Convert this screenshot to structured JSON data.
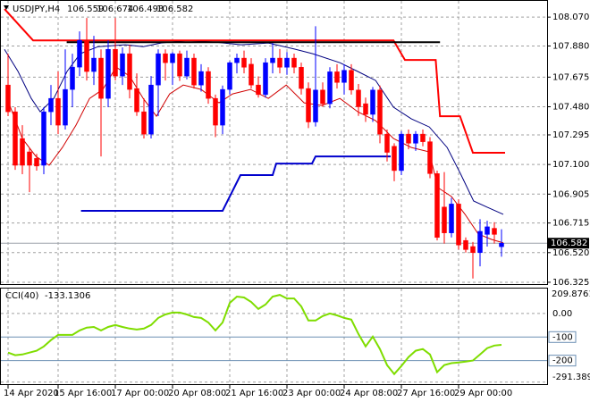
{
  "chart_data": [
    {
      "type": "candlestick",
      "symbol": "USDJPY,H4",
      "up_color": "#0000ff",
      "down_color": "#ff0000",
      "grid": true,
      "open": [
        107.623,
        107.447,
        107.271,
        107.183,
        107.14,
        107.095,
        107.447,
        107.535,
        107.359,
        107.594,
        107.741,
        107.917,
        107.712,
        107.8,
        107.535,
        107.858,
        107.682,
        107.829,
        107.6,
        107.447,
        107.3,
        107.623,
        107.829,
        107.77,
        107.829,
        107.682,
        107.8,
        107.623,
        107.712,
        107.535,
        107.359,
        107.594,
        107.77,
        107.8,
        107.76,
        107.623,
        107.56,
        107.77,
        107.8,
        107.74,
        107.8,
        107.74,
        107.6,
        107.38,
        107.59,
        107.5,
        107.71,
        107.64,
        107.72,
        107.59,
        107.5,
        107.43,
        107.59,
        107.3,
        107.22,
        107.06,
        107.3,
        107.24,
        107.3,
        107.25,
        107.04,
        106.82,
        106.65,
        106.84,
        106.6,
        106.56,
        106.52,
        106.64,
        106.68,
        106.559
      ],
      "high": [
        107.829,
        107.477,
        107.359,
        107.212,
        107.17,
        107.477,
        107.623,
        107.712,
        107.858,
        107.829,
        107.976,
        108.064,
        107.947,
        107.858,
        107.917,
        108.064,
        107.87,
        107.888,
        107.7,
        107.535,
        107.682,
        107.858,
        107.858,
        107.84,
        107.85,
        107.85,
        107.83,
        107.76,
        107.74,
        107.56,
        107.62,
        107.78,
        107.83,
        107.85,
        107.8,
        107.68,
        107.8,
        107.9,
        107.86,
        107.84,
        107.83,
        107.77,
        107.64,
        108.01,
        107.64,
        107.74,
        107.76,
        107.76,
        107.76,
        107.63,
        107.54,
        107.61,
        107.62,
        107.33,
        107.24,
        107.32,
        107.33,
        107.32,
        107.33,
        107.28,
        107.06,
        107.05,
        106.88,
        106.87,
        106.62,
        106.59,
        106.74,
        106.73,
        106.72,
        106.674
      ],
      "low": [
        107.418,
        107.065,
        107.036,
        106.918,
        107.06,
        107.036,
        107.359,
        107.3,
        107.33,
        107.477,
        107.682,
        107.653,
        107.623,
        107.153,
        107.477,
        107.653,
        107.623,
        107.535,
        107.42,
        107.271,
        107.271,
        107.418,
        107.653,
        107.623,
        107.65,
        107.66,
        107.6,
        107.58,
        107.5,
        107.28,
        107.3,
        107.56,
        107.7,
        107.7,
        107.6,
        107.54,
        107.54,
        107.7,
        107.7,
        107.69,
        107.7,
        107.56,
        107.34,
        107.35,
        107.48,
        107.47,
        107.6,
        107.56,
        107.56,
        107.42,
        107.38,
        107.38,
        107.24,
        107.12,
        106.99,
        107.03,
        107.2,
        107.19,
        107.22,
        107.01,
        106.6,
        106.58,
        106.62,
        106.54,
        106.52,
        106.35,
        106.43,
        106.56,
        106.58,
        106.493
      ],
      "close": [
        107.447,
        107.095,
        107.095,
        107.095,
        107.09,
        107.447,
        107.535,
        107.359,
        107.594,
        107.741,
        107.917,
        107.712,
        107.8,
        107.535,
        107.858,
        107.682,
        107.829,
        107.594,
        107.447,
        107.3,
        107.623,
        107.829,
        107.77,
        107.829,
        107.682,
        107.8,
        107.623,
        107.712,
        107.535,
        107.359,
        107.594,
        107.77,
        107.8,
        107.74,
        107.623,
        107.56,
        107.77,
        107.8,
        107.74,
        107.8,
        107.74,
        107.6,
        107.38,
        107.59,
        107.5,
        107.71,
        107.64,
        107.72,
        107.59,
        107.48,
        107.43,
        107.59,
        107.3,
        107.18,
        107.06,
        107.3,
        107.24,
        107.3,
        107.25,
        107.04,
        106.62,
        106.65,
        106.84,
        106.57,
        106.54,
        106.52,
        106.66,
        106.69,
        106.64,
        106.582
      ],
      "ylim": [
        106.313,
        108.165
      ],
      "yticks": [
        {
          "value": 108.07,
          "label": "108.070"
        },
        {
          "value": 107.88,
          "label": "107.880"
        },
        107.675,
        {
          "value": 107.48,
          "label": "107.480"
        },
        107.295,
        {
          "value": 107.1,
          "label": "107.100"
        },
        106.905,
        106.715,
        {
          "value": 106.52,
          "label": "106.520"
        },
        106.325
      ],
      "xticks": [
        {
          "value": 0,
          "label": "14 Apr 2020"
        },
        {
          "value": 7,
          "label": "15 Apr 16:00"
        },
        {
          "value": 15,
          "label": "17 Apr 00:00"
        },
        {
          "value": 23,
          "label": "20 Apr 08:00"
        },
        {
          "value": 31,
          "label": "21 Apr 16:00"
        },
        {
          "value": 39,
          "label": "23 Apr 00:00"
        },
        {
          "value": 47,
          "label": "24 Apr 08:00"
        },
        {
          "value": 55,
          "label": "27 Apr 16:00"
        },
        {
          "value": 63,
          "label": "29 Apr 00:00"
        }
      ],
      "overlays": [
        {
          "color": "#000080",
          "width": 1,
          "x": [
            -0.5,
            1.4,
            3.25,
            4.5,
            6.4,
            8.25,
            10.1,
            12.6,
            16.4,
            18.9,
            21.4,
            25.1,
            28.9,
            32.6,
            36.4,
            40.1,
            42.6,
            46.4,
            48.9,
            51.4,
            53.9,
            56.4,
            58.9,
            61.4,
            63.3,
            65.1,
            67,
            69.25
          ],
          "values": [
            107.858,
            107.712,
            107.535,
            107.447,
            107.535,
            107.712,
            107.829,
            107.876,
            107.888,
            107.876,
            107.9,
            107.917,
            107.906,
            107.888,
            107.9,
            107.859,
            107.829,
            107.77,
            107.712,
            107.653,
            107.477,
            107.4,
            107.347,
            107.212,
            107.036,
            106.86,
            106.819,
            106.772
          ]
        },
        {
          "color": "#d00000",
          "width": 1,
          "x": [
            0.1,
            2,
            3.9,
            5.75,
            7.6,
            9.5,
            11.4,
            13.25,
            15.1,
            17,
            18.9,
            20.75,
            22.6,
            24.5,
            27,
            29.5,
            31.4,
            33.9,
            36.4,
            38.9,
            41.4,
            43.9,
            46.4,
            48.9,
            51.4,
            53.9,
            56.4,
            58.9,
            60.1,
            62,
            63.9,
            65.75,
            67.6,
            69.25
          ],
          "values": [
            107.506,
            107.271,
            107.153,
            107.095,
            107.212,
            107.359,
            107.535,
            107.594,
            107.741,
            107.682,
            107.535,
            107.418,
            107.565,
            107.623,
            107.594,
            107.506,
            107.565,
            107.594,
            107.535,
            107.623,
            107.506,
            107.488,
            107.535,
            107.447,
            107.389,
            107.271,
            107.212,
            107.183,
            106.948,
            106.889,
            106.772,
            106.643,
            106.607,
            106.584
          ]
        },
        {
          "color": "#ff0000",
          "width": 2,
          "x": [
            -0.5,
            3.5,
            53.9,
            55.5,
            59.8,
            60.4,
            63.2,
            65,
            69.5
          ],
          "values": [
            108.123,
            107.917,
            107.917,
            107.788,
            107.788,
            107.418,
            107.418,
            107.177,
            107.177
          ]
        },
        {
          "color": "#0000cd",
          "width": 2,
          "x": [
            10.2,
            30,
            32.5,
            37,
            37.5,
            42.5,
            43,
            53.5
          ],
          "values": [
            106.795,
            106.795,
            107.03,
            107.03,
            107.106,
            107.106,
            107.153,
            107.153
          ]
        },
        {
          "color": "#000000",
          "width": 2,
          "x": [
            8.2,
            60.4
          ],
          "values": [
            107.905,
            107.905
          ]
        }
      ]
    },
    {
      "type": "line",
      "title": "CCI(40)",
      "color": "#7fdd00",
      "values": [
        -166,
        -177,
        -174,
        -166,
        -158,
        -140,
        -113,
        -91,
        -91,
        -91,
        -72,
        -60,
        -57,
        -72,
        -57,
        -49,
        -57,
        -64,
        -68,
        -64,
        -49,
        -19,
        -4,
        4,
        4,
        -4,
        -15,
        -19,
        -38,
        -72,
        -38,
        45,
        72,
        68,
        49,
        19,
        38,
        72,
        79,
        64,
        64,
        30,
        -30,
        -30,
        -11,
        0,
        -8,
        -19,
        -26,
        -87,
        -140,
        -98,
        -151,
        -219,
        -257,
        -223,
        -185,
        -158,
        -151,
        -174,
        -249,
        -219,
        -211,
        -208,
        -204,
        -200,
        -174,
        -147,
        -136,
        -133.1306
      ],
      "ylim": [
        -300,
        106
      ],
      "yticks": [
        {
          "value": 0,
          "label": "0.00"
        },
        -291.3894
      ],
      "levels": [
        -100,
        -200
      ],
      "max_label": 209.8761
    }
  ]
}
